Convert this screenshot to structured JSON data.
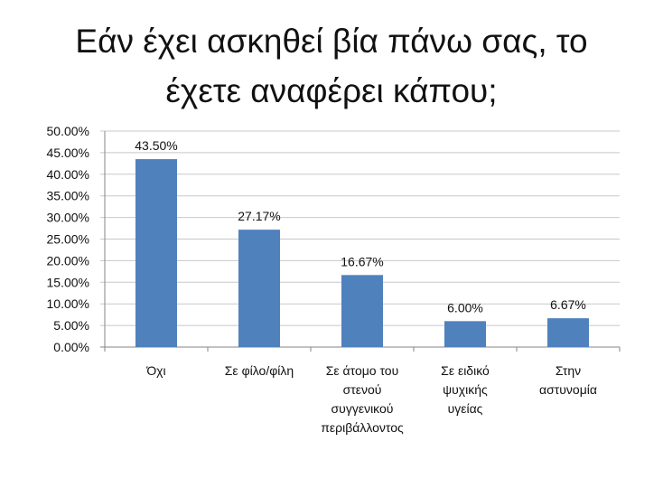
{
  "title_lines": [
    "Εάν έχει ασκηθεί βία πάνω σας, το",
    "έχετε αναφέρει κάπου;"
  ],
  "chart_data": {
    "type": "bar",
    "title": "Εάν έχει ασκηθεί βία πάνω σας, το έχετε αναφέρει κάπου;",
    "categories": [
      [
        "Όχι"
      ],
      [
        "Σε φίλο/φίλη"
      ],
      [
        "Σε άτομο του",
        "στενού",
        "συγγενικού",
        "περιβάλλοντος"
      ],
      [
        "Σε ειδικό",
        "ψυχικής",
        "υγείας"
      ],
      [
        "Στην",
        "αστυνομία"
      ]
    ],
    "values": [
      43.5,
      27.17,
      16.67,
      6.0,
      6.67
    ],
    "data_labels": [
      "43.50%",
      "27.17%",
      "16.67%",
      "6.00%",
      "6.67%"
    ],
    "ylim": [
      0,
      50
    ],
    "yticks": [
      "0.00%",
      "5.00%",
      "10.00%",
      "15.00%",
      "20.00%",
      "25.00%",
      "30.00%",
      "35.00%",
      "40.00%",
      "45.00%",
      "50.00%"
    ],
    "grid": true,
    "legend": "none",
    "bar_color": "#4f81bd"
  }
}
